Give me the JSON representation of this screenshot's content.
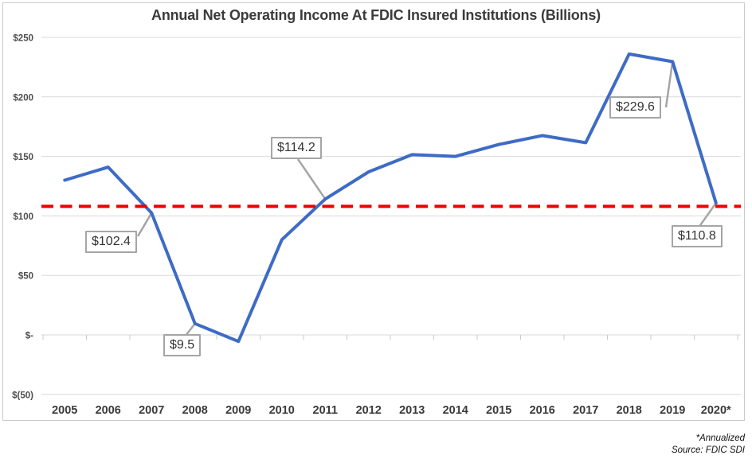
{
  "chart_data": {
    "type": "line",
    "title": "Annual Net Operating Income At FDIC Insured Institutions (Billions)",
    "categories": [
      "2005",
      "2006",
      "2007",
      "2008",
      "2009",
      "2010",
      "2011",
      "2012",
      "2013",
      "2014",
      "2015",
      "2016",
      "2017",
      "2018",
      "2019",
      "2020*"
    ],
    "series": [
      {
        "name": "Annual net operating income",
        "values": [
          130,
          141,
          102.4,
          9.5,
          -5.5,
          80,
          114.2,
          137,
          151.5,
          150,
          160,
          167.5,
          161.5,
          236,
          229.6,
          110.8
        ],
        "color": "#3e6bc5"
      }
    ],
    "y_ticks": [
      {
        "label": "$250",
        "value": 250
      },
      {
        "label": "$200",
        "value": 200
      },
      {
        "label": "$150",
        "value": 150
      },
      {
        "label": "$100",
        "value": 100
      },
      {
        "label": "$50",
        "value": 50
      },
      {
        "label": "$-",
        "value": 0
      },
      {
        "label": "$(50)",
        "value": -50
      }
    ],
    "ylim": [
      -50,
      250
    ],
    "grid": true,
    "legend_position": "none",
    "reference_line": {
      "value": 108,
      "color": "#ee0000",
      "style": "dashed"
    },
    "annotations": [
      {
        "category": "2007",
        "text": "$102.4"
      },
      {
        "category": "2008",
        "text": "$9.5"
      },
      {
        "category": "2011",
        "text": "$114.2"
      },
      {
        "category": "2019",
        "text": "$229.6"
      },
      {
        "category": "2020*",
        "text": "$110.8"
      }
    ],
    "colors": {
      "line": "#3e6bc5",
      "reference": "#ee0000",
      "gridline": "#d9d9d9",
      "callout_border": "#a5a5a5",
      "axis_text": "#4d4d4d"
    }
  },
  "footer": {
    "note": "*Annualized",
    "source": "Source: FDIC SDI"
  }
}
